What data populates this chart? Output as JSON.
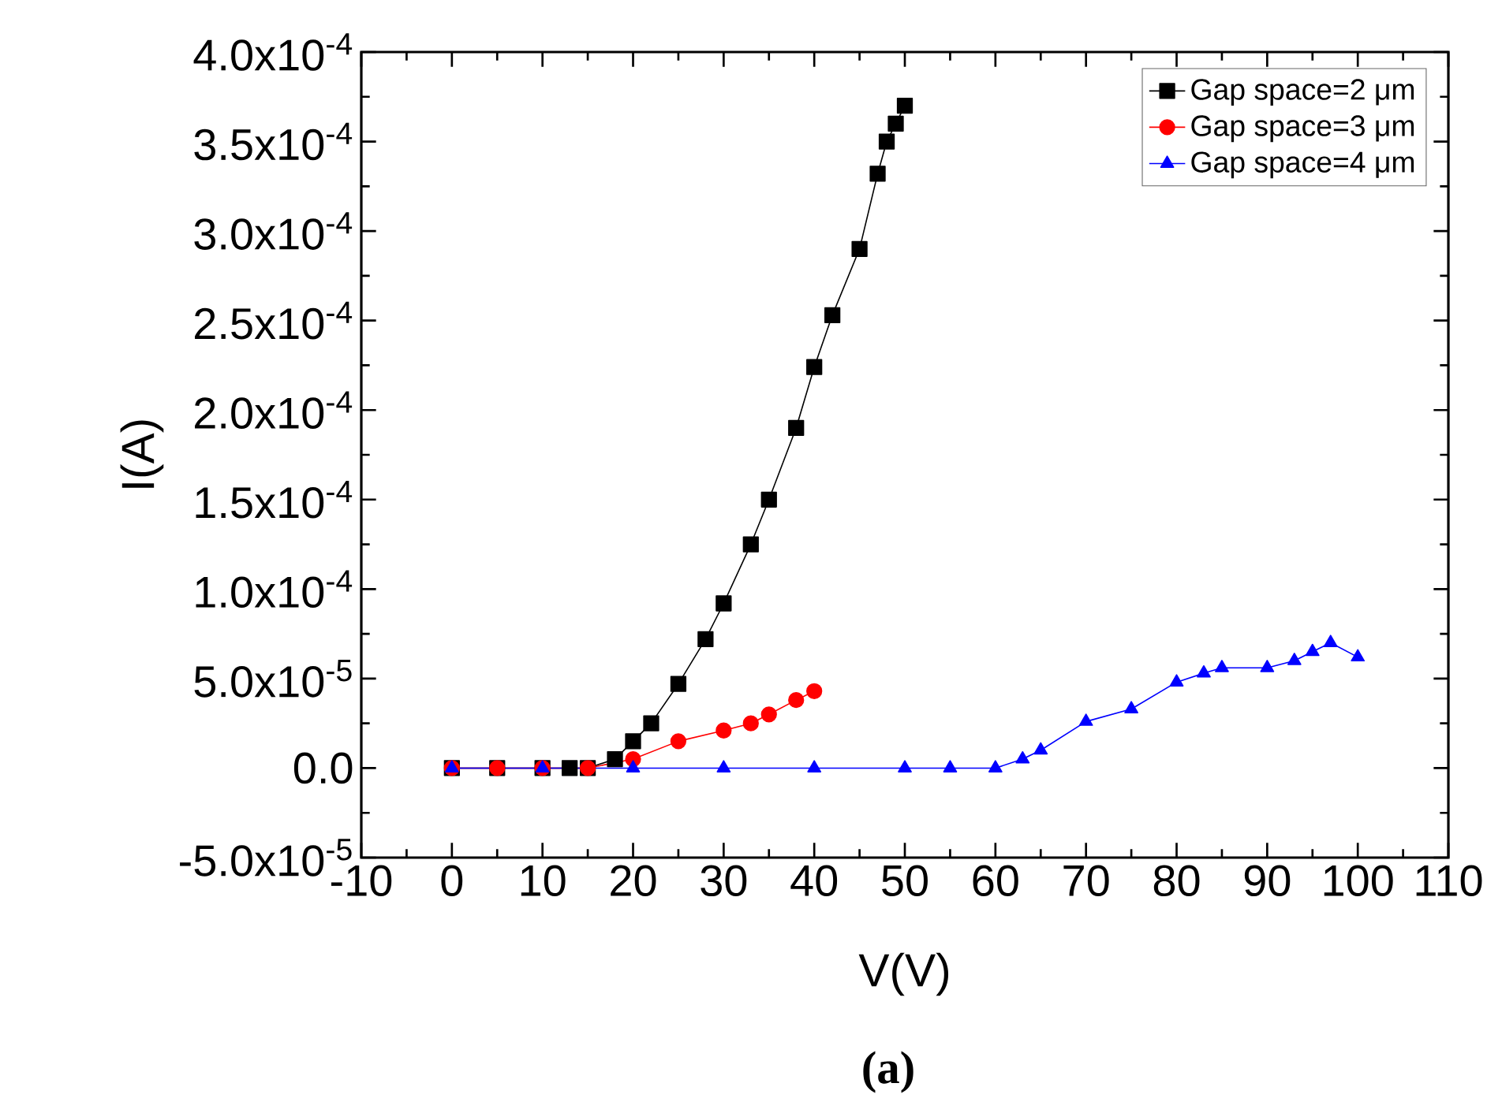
{
  "chart_data": {
    "type": "line",
    "xlabel": "V(V)",
    "ylabel": "I(A)",
    "annotations": [
      "(a)"
    ],
    "xlim": [
      -10,
      110
    ],
    "xticks": [
      -10,
      0,
      10,
      20,
      30,
      40,
      50,
      60,
      70,
      80,
      90,
      100,
      110
    ],
    "ylim": [
      -5e-05,
      0.0004
    ],
    "yticks": [
      {
        "value": -5e-05,
        "label": "-5.0x10$^{-5}$"
      },
      {
        "value": 0,
        "label": "0.0"
      },
      {
        "value": 5e-05,
        "label": "5.0x10$^{-5}$"
      },
      {
        "value": 0.0001,
        "label": "1.0x10$^{-4}$"
      },
      {
        "value": 0.00015,
        "label": "1.5x10$^{-4}$"
      },
      {
        "value": 0.0002,
        "label": "2.0x10$^{-4}$"
      },
      {
        "value": 0.00025,
        "label": "2.5x10$^{-4}$"
      },
      {
        "value": 0.0003,
        "label": "3.0x10$^{-4}$"
      },
      {
        "value": 0.00035,
        "label": "3.5x10$^{-4}$"
      },
      {
        "value": 0.0004,
        "label": "4.0x10$^{-4}$"
      }
    ],
    "legend": "top right",
    "grid": false,
    "series": [
      {
        "name": "Gap space=2 μm",
        "color": "#000000",
        "marker": "square",
        "x": [
          0,
          5,
          10,
          13,
          15,
          18,
          20,
          22,
          25,
          28,
          30,
          33,
          35,
          38,
          40,
          42,
          45,
          47,
          48,
          49,
          50
        ],
        "values": [
          0,
          0,
          0,
          0,
          0,
          5e-06,
          1.5e-05,
          2.5e-05,
          4.7e-05,
          7.2e-05,
          9.2e-05,
          0.000125,
          0.00015,
          0.00019,
          0.000224,
          0.000253,
          0.00029,
          0.000332,
          0.00035,
          0.00036,
          0.00037
        ]
      },
      {
        "name": "Gap space=3 μm",
        "color": "#ff0000",
        "marker": "circle",
        "x": [
          0,
          5,
          10,
          15,
          20,
          25,
          30,
          33,
          35,
          38,
          40
        ],
        "values": [
          0,
          0,
          0,
          0,
          5e-06,
          1.5e-05,
          2.1e-05,
          2.5e-05,
          3e-05,
          3.8e-05,
          4.3e-05
        ]
      },
      {
        "name": "Gap space=4 μm",
        "color": "#0000ff",
        "marker": "triangle",
        "x": [
          0,
          10,
          20,
          30,
          40,
          50,
          55,
          60,
          63,
          65,
          70,
          75,
          80,
          83,
          85,
          90,
          93,
          95,
          97,
          100
        ],
        "values": [
          0,
          0,
          0,
          0,
          0,
          0,
          0,
          0,
          5e-06,
          1e-05,
          2.6e-05,
          3.3e-05,
          4.8e-05,
          5.3e-05,
          5.6e-05,
          5.6e-05,
          6e-05,
          6.5e-05,
          7e-05,
          6.2e-05
        ]
      }
    ]
  }
}
